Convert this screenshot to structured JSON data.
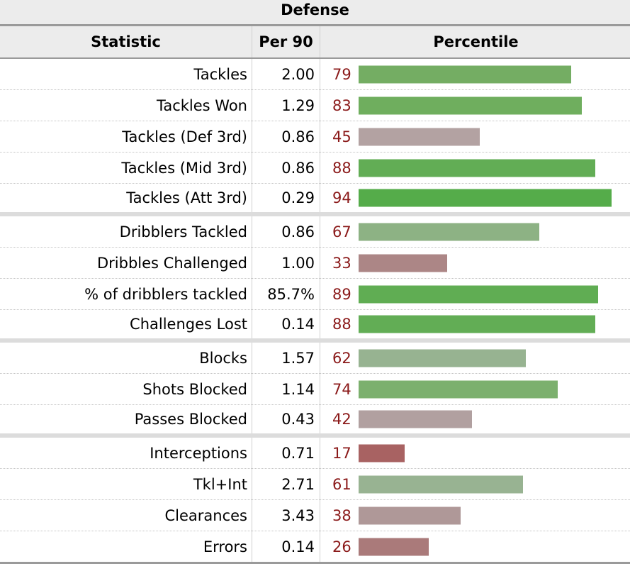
{
  "caption": "Defense",
  "headers": {
    "statistic": "Statistic",
    "per90": "Per 90",
    "percentile": "Percentile"
  },
  "colors": {
    "high": "#5aad4e",
    "high_mid": "#74ad63",
    "mid_green": "#97b391",
    "neutral": "#b3a2a2",
    "low_mid": "#aa8080",
    "low": "#a86262",
    "percentile_text": "#8b1a1a"
  },
  "rows": [
    {
      "label": "Tackles",
      "per90": "2.00",
      "percentile": "79",
      "value": 79,
      "color": "#74ad63",
      "group_end": false
    },
    {
      "label": "Tackles Won",
      "per90": "1.29",
      "percentile": "83",
      "value": 83,
      "color": "#6fae5e",
      "group_end": false
    },
    {
      "label": "Tackles (Def 3rd)",
      "per90": "0.86",
      "percentile": "45",
      "value": 45,
      "color": "#b3a2a2",
      "group_end": false
    },
    {
      "label": "Tackles (Mid 3rd)",
      "per90": "0.86",
      "percentile": "88",
      "value": 88,
      "color": "#62ad55",
      "group_end": false
    },
    {
      "label": "Tackles (Att 3rd)",
      "per90": "0.29",
      "percentile": "94",
      "value": 94,
      "color": "#55ac4a",
      "group_end": true
    },
    {
      "label": "Dribblers Tackled",
      "per90": "0.86",
      "percentile": "67",
      "value": 67,
      "color": "#8db284",
      "group_end": false
    },
    {
      "label": "Dribbles Challenged",
      "per90": "1.00",
      "percentile": "33",
      "value": 33,
      "color": "#ac8686",
      "group_end": false
    },
    {
      "label": "% of dribblers tackled",
      "per90": "85.7%",
      "percentile": "89",
      "value": 89,
      "color": "#60ad53",
      "group_end": false
    },
    {
      "label": "Challenges Lost",
      "per90": "0.14",
      "percentile": "88",
      "value": 88,
      "color": "#62ad55",
      "group_end": true
    },
    {
      "label": "Blocks",
      "per90": "1.57",
      "percentile": "62",
      "value": 62,
      "color": "#97b391",
      "group_end": false
    },
    {
      "label": "Shots Blocked",
      "per90": "1.14",
      "percentile": "74",
      "value": 74,
      "color": "#7cb06e",
      "group_end": false
    },
    {
      "label": "Passes Blocked",
      "per90": "0.43",
      "percentile": "42",
      "value": 42,
      "color": "#b1a0a0",
      "group_end": true
    },
    {
      "label": "Interceptions",
      "per90": "0.71",
      "percentile": "17",
      "value": 17,
      "color": "#a86262",
      "group_end": false
    },
    {
      "label": "Tkl+Int",
      "per90": "2.71",
      "percentile": "61",
      "value": 61,
      "color": "#98b392",
      "group_end": false
    },
    {
      "label": "Clearances",
      "per90": "3.43",
      "percentile": "38",
      "value": 38,
      "color": "#af9898",
      "group_end": false
    },
    {
      "label": "Errors",
      "per90": "0.14",
      "percentile": "26",
      "value": 26,
      "color": "#aa7a7a",
      "group_end": false
    }
  ]
}
